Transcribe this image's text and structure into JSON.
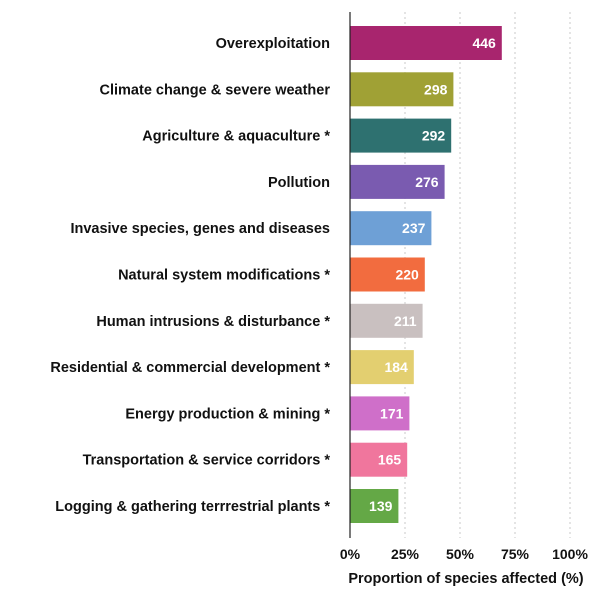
{
  "chart_data": {
    "type": "bar",
    "orientation": "horizontal",
    "categories": [
      "Overexploitation",
      "Climate change & severe weather",
      "Agriculture & aquaculture *",
      "Pollution",
      "Invasive species, genes and diseases",
      "Natural system modifications *",
      "Human intrusions & disturbance *",
      "Residential & commercial development *",
      "Energy production & mining *",
      "Transportation & service corridors *",
      "Logging & gathering terrrestrial plants *"
    ],
    "values": [
      446,
      298,
      292,
      276,
      237,
      220,
      211,
      184,
      171,
      165,
      139
    ],
    "proportions_percent": [
      69,
      47,
      46,
      43,
      37,
      34,
      33,
      29,
      27,
      26,
      22
    ],
    "value_labels": [
      "446",
      "298",
      "292",
      "276",
      "237",
      "220",
      "211",
      "184",
      "171",
      "165",
      "139"
    ],
    "colors": [
      "#a8256e",
      "#a0a135",
      "#2e7170",
      "#7a5bb0",
      "#6ea0d6",
      "#f26c3f",
      "#c9c0c0",
      "#e3cf70",
      "#cf6fc9",
      "#f0769d",
      "#64a846"
    ],
    "xlabel": "Proportion of species affected (%)",
    "ylabel": "",
    "title": "",
    "xlim": [
      0,
      100
    ],
    "xticks": [
      0,
      25,
      50,
      75,
      100
    ],
    "xtick_labels": [
      "0%",
      "25%",
      "50%",
      "75%",
      "100%"
    ],
    "grid": "vertical dotted",
    "legend": "none"
  }
}
